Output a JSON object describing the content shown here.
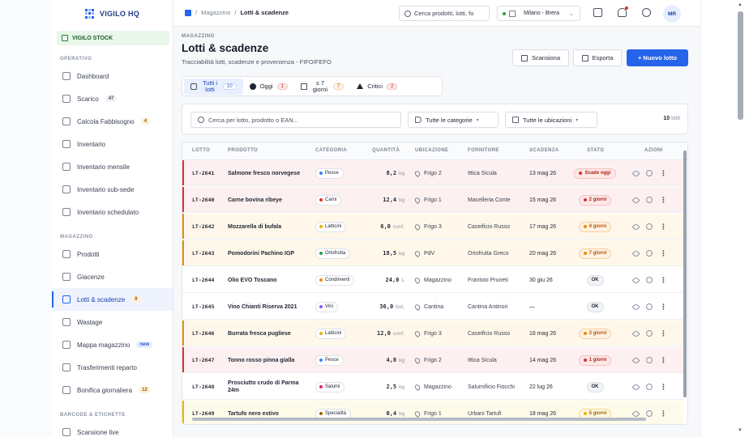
{
  "brand": {
    "name": "VIGILO HQ"
  },
  "store": {
    "name": "VIGILO STOCK"
  },
  "sidebar": {
    "sections": [
      {
        "title": "OPERATIVO",
        "items": [
          {
            "label": "Dashboard",
            "icon": "dashboard-icon",
            "count": ""
          },
          {
            "label": "Scarico",
            "icon": "upload-icon",
            "count": "47"
          },
          {
            "label": "Calcola Fabbisogno",
            "icon": "calculator-icon",
            "count": "4"
          },
          {
            "label": "Inventario",
            "icon": "clipboard-icon",
            "count": ""
          },
          {
            "label": "Inventario mensile",
            "icon": "calendar-icon",
            "count": ""
          },
          {
            "label": "Inventario sub-sede",
            "icon": "hierarchy-icon",
            "count": ""
          },
          {
            "label": "Inventario schedulato",
            "icon": "schedule-icon",
            "count": ""
          }
        ]
      },
      {
        "title": "MAGAZZINO",
        "items": [
          {
            "label": "Prodotti",
            "icon": "box-icon",
            "count": ""
          },
          {
            "label": "Giacenze",
            "icon": "layers-icon",
            "count": ""
          },
          {
            "label": "Lotti & scadenze",
            "icon": "calendar-clock-icon",
            "count": "9"
          },
          {
            "label": "Wastage",
            "icon": "trash-icon",
            "count": ""
          },
          {
            "label": "Mappa magazzino",
            "icon": "map-icon",
            "count": "new"
          },
          {
            "label": "Trasferimenti reparto",
            "icon": "transfer-icon",
            "count": ""
          },
          {
            "label": "Bonifica giornaliera",
            "icon": "shield-icon",
            "count": "12"
          }
        ]
      },
      {
        "title": "BARCODE & ETICHETTE",
        "items": [
          {
            "label": "Scansione live",
            "icon": "scan-icon",
            "count": ""
          }
        ]
      }
    ]
  },
  "topbar": {
    "breadcrumb": [
      "Magazzino",
      "Lotti & scadenze"
    ],
    "search_placeholder": "Cerca prodotti, lotti, fo",
    "location": "Milano - Brera",
    "avatar": "MR"
  },
  "page": {
    "tag": "MAGAZZINO",
    "title": "Lotti & scadenze",
    "subtitle": "Tracciabilità lotti, scadenze e provenienza - FIFO/FEFO",
    "actions": {
      "scan": "Scansiona",
      "export": "Esporta",
      "new": "+ Nuovo lotto"
    }
  },
  "tabs": [
    {
      "label": "Tutti i lotti",
      "count": "10"
    },
    {
      "label": "Oggi",
      "count": "1"
    },
    {
      "label": "≤ 7 giorni",
      "count": "7"
    },
    {
      "label": "Critici",
      "count": "2"
    }
  ],
  "filters": {
    "search_placeholder": "Cerca per lotto, prodotto o EAN...",
    "category": "Tutte le categorie",
    "location": "Tutte le ubicazioni",
    "count": "10",
    "count_label": "lotti"
  },
  "table": {
    "columns": [
      "LOTTO",
      "PRODOTTO",
      "CATEGORIA",
      "QUANTITÀ",
      "UBICAZIONE",
      "FORNITORE",
      "SCADENZA",
      "STATO",
      "AZIONI"
    ],
    "rows": [
      {
        "lot": "LT-2641",
        "product": "Salmone fresco norvegese",
        "category": "Pesce",
        "cat_color": "#3b82f6",
        "qty": "8,2",
        "unit": "kg",
        "location": "Frigo 2",
        "supplier": "Ittica Sicula",
        "expiry": "13 mag 26",
        "status": "Scade oggi",
        "level": "red"
      },
      {
        "lot": "LT-2640",
        "product": "Carne bovina ribeye",
        "category": "Carni",
        "cat_color": "#e03131",
        "qty": "12,4",
        "unit": "kg",
        "location": "Frigo 1",
        "supplier": "Macelleria Conte",
        "expiry": "15 mag 26",
        "status": "2 giorni",
        "level": "red"
      },
      {
        "lot": "LT-2642",
        "product": "Mozzarella di bufala",
        "category": "Latticini",
        "cat_color": "#eab308",
        "qty": "6,0",
        "unit": "conf.",
        "location": "Frigo 3",
        "supplier": "Caseificio Russo",
        "expiry": "17 mag 26",
        "status": "4 giorni",
        "level": "or"
      },
      {
        "lot": "LT-2643",
        "product": "Pomodorini Pachino IGP",
        "category": "Ortofrutta",
        "cat_color": "#22a34a",
        "qty": "18,5",
        "unit": "kg",
        "location": "PdV",
        "supplier": "Ortofrutta Greco",
        "expiry": "20 mag 26",
        "status": "7 giorni",
        "level": "or"
      },
      {
        "lot": "LT-2644",
        "product": "Olio EVO Toscano",
        "category": "Condimenti",
        "cat_color": "#f08c00",
        "qty": "24,0",
        "unit": "L",
        "location": "Magazzino",
        "supplier": "Frantoio Pruneti",
        "expiry": "30 giu 26",
        "status": "OK",
        "level": "ok"
      },
      {
        "lot": "LT-2645",
        "product": "Vino Chianti Riserva 2021",
        "category": "Vini",
        "cat_color": "#8b5cf6",
        "qty": "36,0",
        "unit": "bot.",
        "location": "Cantina",
        "supplier": "Cantina Antinori",
        "expiry": "—",
        "status": "OK",
        "level": "ok"
      },
      {
        "lot": "LT-2646",
        "product": "Burrata fresca pugliese",
        "category": "Latticini",
        "cat_color": "#eab308",
        "qty": "12,0",
        "unit": "conf.",
        "location": "Frigo 3",
        "supplier": "Caseificio Russo",
        "expiry": "16 mag 26",
        "status": "3 giorni",
        "level": "or"
      },
      {
        "lot": "LT-2647",
        "product": "Tonno rosso pinna gialla",
        "category": "Pesce",
        "cat_color": "#3b82f6",
        "qty": "4,8",
        "unit": "kg",
        "location": "Frigo 2",
        "supplier": "Ittica Sicula",
        "expiry": "14 mag 26",
        "status": "1 giorni",
        "level": "red"
      },
      {
        "lot": "LT-2648",
        "product": "Prosciutto crudo di Parma 24m",
        "category": "Salumi",
        "cat_color": "#db2777",
        "qty": "2,5",
        "unit": "kg",
        "location": "Magazzino",
        "supplier": "Salumificio Fiocchi",
        "expiry": "22 lug 26",
        "status": "OK",
        "level": "ok"
      },
      {
        "lot": "LT-2649",
        "product": "Tartufo nero estivo",
        "category": "Specialità",
        "cat_color": "#a16207",
        "qty": "0,4",
        "unit": "kg",
        "location": "Frigo 1",
        "supplier": "Urbani Tartufi",
        "expiry": "18 mag 26",
        "status": "5 giorni",
        "level": "ye"
      }
    ]
  }
}
